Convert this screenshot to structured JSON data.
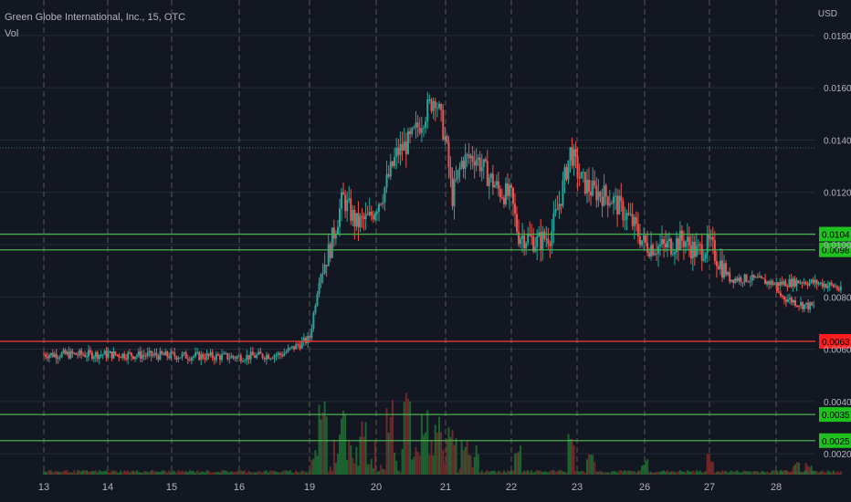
{
  "legend": {
    "symbol": "Green Globe International, Inc., 15, OTC",
    "vol_label": "Vol"
  },
  "currency": "USD",
  "colors": {
    "background": "#131722",
    "grid": "#262b3a",
    "up": "#26a69a",
    "down": "#ef5350",
    "support_line": "#4caf50",
    "resistance_line": "#e53935",
    "support_label_bg": "#1fc11f",
    "resistance_label_bg": "#ff1d1d",
    "axis_text": "#b2b5be",
    "session_line": "#5d5a4a",
    "price_level_line": "#2f6f73"
  },
  "chart_data": {
    "type": "candlestick",
    "title": "Green Globe International, Inc., 15, OTC",
    "ylabel": "USD",
    "ylim": [
      0.0012,
      0.0188
    ],
    "y_ticks": [
      "0.0180",
      "0.0160",
      "0.0140",
      "0.0120",
      "0.0100",
      "0.0080",
      "0.0060",
      "0.0040",
      "0.0020"
    ],
    "x_ticks": [
      "13",
      "14",
      "15",
      "16",
      "19",
      "20",
      "21",
      "22",
      "23",
      "26",
      "27",
      "28"
    ],
    "grid": true,
    "horizontal_levels": [
      {
        "label": "0.0104",
        "value": 0.0104,
        "kind": "support"
      },
      {
        "label": "0.0098",
        "value": 0.0098,
        "kind": "support"
      },
      {
        "label": "0.0063",
        "value": 0.0063,
        "kind": "resistance"
      },
      {
        "label": "0.0035",
        "value": 0.0035,
        "kind": "support"
      },
      {
        "label": "0.0025",
        "value": 0.0025,
        "kind": "support"
      }
    ],
    "dotted_price_level": 0.0137,
    "price_path": [
      [
        0,
        0.0058
      ],
      [
        1,
        0.0058
      ],
      [
        2,
        0.00575
      ],
      [
        3,
        0.0057
      ],
      [
        3.6,
        0.0058
      ],
      [
        4,
        0.0064
      ],
      [
        4.15,
        0.0088
      ],
      [
        4.3,
        0.0098
      ],
      [
        4.5,
        0.0118
      ],
      [
        4.7,
        0.0108
      ],
      [
        4.9,
        0.011
      ],
      [
        5.1,
        0.012
      ],
      [
        5.3,
        0.0135
      ],
      [
        5.5,
        0.014
      ],
      [
        5.7,
        0.015
      ],
      [
        5.85,
        0.0157
      ],
      [
        6.0,
        0.014
      ],
      [
        6.1,
        0.0118
      ],
      [
        6.25,
        0.0132
      ],
      [
        6.45,
        0.0134
      ],
      [
        6.6,
        0.0128
      ],
      [
        6.8,
        0.0121
      ],
      [
        7.0,
        0.0118
      ],
      [
        7.1,
        0.0104
      ],
      [
        7.4,
        0.0101
      ],
      [
        7.6,
        0.0104
      ],
      [
        7.75,
        0.0118
      ],
      [
        7.9,
        0.0136
      ],
      [
        8.05,
        0.0125
      ],
      [
        8.2,
        0.0121
      ],
      [
        8.5,
        0.0118
      ],
      [
        8.8,
        0.0109
      ],
      [
        9.0,
        0.01
      ],
      [
        9.3,
        0.0099
      ],
      [
        9.6,
        0.0102
      ],
      [
        9.8,
        0.0097
      ],
      [
        10.0,
        0.01
      ],
      [
        10.3,
        0.0087
      ],
      [
        10.6,
        0.0087
      ],
      [
        11.0,
        0.0085
      ],
      [
        11.4,
        0.0086
      ],
      [
        11.7,
        0.0085
      ],
      [
        11.9,
        0.0084
      ],
      [
        12.1,
        0.008
      ],
      [
        12.4,
        0.0077
      ],
      [
        12.6,
        0.0076
      ]
    ],
    "volume_spikes": [
      [
        4.2,
        0.85
      ],
      [
        4.5,
        0.6
      ],
      [
        4.8,
        0.55
      ],
      [
        5.2,
        0.7
      ],
      [
        5.45,
        0.8
      ],
      [
        5.7,
        0.55
      ],
      [
        5.9,
        0.5
      ],
      [
        6.1,
        0.4
      ],
      [
        6.3,
        0.3
      ],
      [
        7.1,
        0.25
      ],
      [
        7.9,
        0.35
      ],
      [
        8.2,
        0.2
      ],
      [
        9.0,
        0.15
      ],
      [
        10.0,
        0.18
      ],
      [
        11.5,
        0.1
      ],
      [
        12.3,
        0.12
      ]
    ]
  }
}
